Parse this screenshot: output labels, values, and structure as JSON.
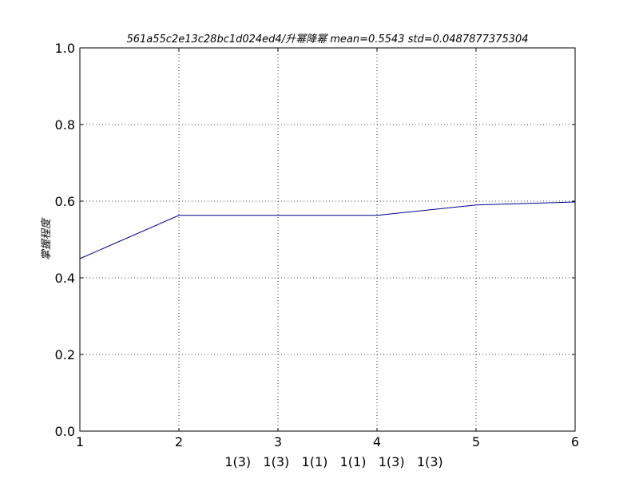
{
  "chart_data": {
    "type": "line",
    "title": "561a55c2e13c28bc1d024ed4/升幂降幂 mean=0.5543 std=0.0487877375304",
    "xlabel": "1(3)   1(3)   1(1)   1(1)   1(3)   1(3)",
    "ylabel": "掌握程度",
    "x": [
      1,
      2,
      3,
      4,
      5,
      6
    ],
    "series": [
      {
        "values": [
          0.45,
          0.563,
          0.563,
          0.563,
          0.59,
          0.598
        ],
        "color": "#00008b"
      }
    ],
    "xlim": [
      1,
      6
    ],
    "ylim": [
      0.0,
      1.0
    ],
    "xticks": [
      "1",
      "2",
      "3",
      "4",
      "5",
      "6"
    ],
    "yticks": [
      "0.0",
      "0.2",
      "0.4",
      "0.6",
      "0.8",
      "1.0"
    ],
    "grid": true
  }
}
